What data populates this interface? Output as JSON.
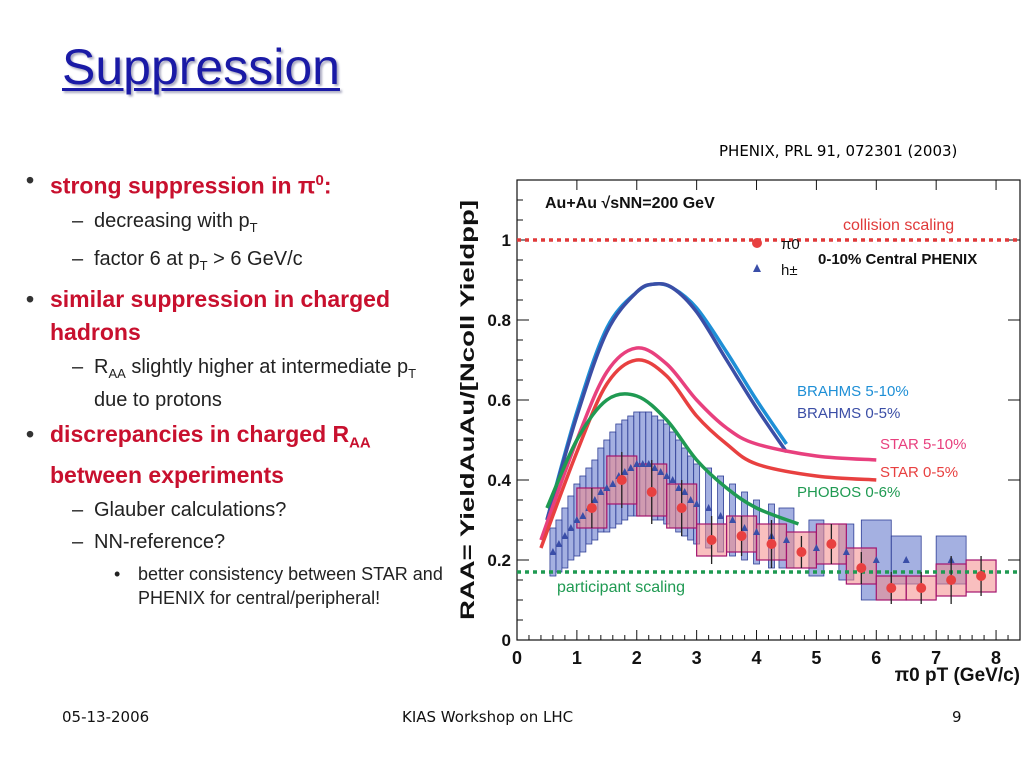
{
  "slide": {
    "title": "Suppression",
    "citation": "PHENIX, PRL 91, 072301 (2003)",
    "footer_left": "05-13-2006",
    "footer_center": "KIAS Workshop on LHC",
    "footer_right": "9"
  },
  "bullets": [
    {
      "level": 1,
      "text": "strong suppression in π",
      "sup": "0",
      "tail": ":"
    },
    {
      "level": 2,
      "text": "decreasing with p",
      "sub": "T"
    },
    {
      "level": 2,
      "text": "factor 6 at p",
      "sub": "T",
      "tail": " > 6 GeV/c"
    },
    {
      "level": 1,
      "text": "similar suppression in charged hadrons"
    },
    {
      "level": 2,
      "pre": "R",
      "presub": "AA",
      "text": " slightly higher at intermediate p",
      "sub": "T",
      "tail": " due to protons"
    },
    {
      "level": 1,
      "text": "discrepancies in charged R",
      "sub": "AA",
      "tail": " between experiments"
    },
    {
      "level": 2,
      "text": "Glauber calculations?"
    },
    {
      "level": 2,
      "text": "NN-reference?"
    },
    {
      "level": 3,
      "text": " better consistency between STAR and PHENIX for central/peripheral!"
    }
  ],
  "chart_data": {
    "type": "scatter",
    "title": "Au+Au √sNN=200 GeV",
    "subtitle": "0-10% Central PHENIX",
    "xlabel": "π0 pT (GeV/c)",
    "ylabel": "RAA= YieldAuAu/[Ncoll Yieldpp]",
    "xlim": [
      0,
      8.4
    ],
    "ylim": [
      0,
      1.15
    ],
    "xticks": [
      0,
      1,
      2,
      3,
      4,
      5,
      6,
      7,
      8
    ],
    "yticks": [
      0,
      0.2,
      0.4,
      0.6,
      0.8,
      1
    ],
    "ytick_labels": [
      "0",
      "0.2",
      "0.4",
      "0.6",
      "0.8",
      "1"
    ],
    "grid": false,
    "reference_lines": [
      {
        "label": "collision scaling",
        "y": 1.0,
        "color": "#e03a3a"
      },
      {
        "label": "participant scaling",
        "y": 0.17,
        "color": "#1f9a52"
      }
    ],
    "legend": [
      {
        "symbol": "circle",
        "label": "π0",
        "color": "#e84040"
      },
      {
        "symbol": "triangle",
        "label": "h±",
        "color": "#3a4ea8"
      }
    ],
    "series": [
      {
        "name": "π0",
        "color": "#e84040",
        "marker": "circle",
        "x": [
          1.25,
          1.75,
          2.25,
          2.75,
          3.25,
          3.75,
          4.25,
          4.75,
          5.25,
          5.75,
          6.25,
          6.75,
          7.25,
          7.75
        ],
        "y": [
          0.33,
          0.4,
          0.37,
          0.33,
          0.25,
          0.26,
          0.24,
          0.22,
          0.24,
          0.18,
          0.13,
          0.13,
          0.15,
          0.16
        ],
        "err": [
          0.05,
          0.07,
          0.08,
          0.07,
          0.06,
          0.05,
          0.06,
          0.04,
          0.05,
          0.04,
          0.04,
          0.04,
          0.06,
          0.05
        ],
        "sys_lo": [
          0.28,
          0.34,
          0.31,
          0.28,
          0.21,
          0.22,
          0.2,
          0.18,
          0.19,
          0.14,
          0.1,
          0.1,
          0.11,
          0.12
        ],
        "sys_hi": [
          0.38,
          0.46,
          0.44,
          0.39,
          0.29,
          0.31,
          0.29,
          0.27,
          0.29,
          0.23,
          0.16,
          0.16,
          0.19,
          0.2
        ]
      },
      {
        "name": "h±",
        "color": "#3a4ea8",
        "marker": "triangle",
        "x": [
          0.6,
          0.7,
          0.8,
          0.9,
          1.0,
          1.1,
          1.2,
          1.3,
          1.4,
          1.5,
          1.6,
          1.7,
          1.8,
          1.9,
          2.0,
          2.1,
          2.2,
          2.3,
          2.4,
          2.5,
          2.6,
          2.7,
          2.8,
          2.9,
          3.0,
          3.2,
          3.4,
          3.6,
          3.8,
          4.0,
          4.25,
          4.5,
          5.0,
          5.5,
          6.0,
          6.5,
          7.25
        ],
        "y": [
          0.22,
          0.24,
          0.26,
          0.28,
          0.3,
          0.31,
          0.33,
          0.35,
          0.37,
          0.38,
          0.39,
          0.41,
          0.42,
          0.43,
          0.44,
          0.44,
          0.44,
          0.43,
          0.42,
          0.41,
          0.4,
          0.38,
          0.37,
          0.35,
          0.34,
          0.33,
          0.31,
          0.3,
          0.28,
          0.27,
          0.26,
          0.25,
          0.23,
          0.22,
          0.2,
          0.2,
          0.2
        ],
        "sys_lo": [
          0.16,
          0.17,
          0.18,
          0.2,
          0.21,
          0.22,
          0.24,
          0.25,
          0.27,
          0.27,
          0.28,
          0.29,
          0.3,
          0.31,
          0.31,
          0.31,
          0.31,
          0.3,
          0.3,
          0.29,
          0.28,
          0.27,
          0.26,
          0.25,
          0.24,
          0.23,
          0.22,
          0.21,
          0.2,
          0.19,
          0.18,
          0.18,
          0.16,
          0.15,
          0.1,
          0.14,
          0.14
        ],
        "sys_hi": [
          0.28,
          0.3,
          0.33,
          0.36,
          0.39,
          0.41,
          0.43,
          0.45,
          0.48,
          0.5,
          0.52,
          0.54,
          0.55,
          0.56,
          0.57,
          0.57,
          0.57,
          0.56,
          0.55,
          0.54,
          0.52,
          0.5,
          0.48,
          0.46,
          0.44,
          0.43,
          0.41,
          0.39,
          0.37,
          0.35,
          0.34,
          0.33,
          0.3,
          0.29,
          0.3,
          0.26,
          0.26
        ]
      },
      {
        "name": "BRAHMS 5-10%",
        "color": "#1e8fd6",
        "x": [
          0.5,
          1.0,
          1.5,
          2.0,
          2.3,
          2.6,
          3.0,
          3.5,
          4.0,
          4.5
        ],
        "y": [
          0.3,
          0.57,
          0.78,
          0.87,
          0.89,
          0.88,
          0.83,
          0.72,
          0.6,
          0.49
        ]
      },
      {
        "name": "BRAHMS 0-5%",
        "color": "#3b4ea6",
        "x": [
          0.5,
          1.0,
          1.5,
          2.0,
          2.3,
          2.6,
          3.0,
          3.5,
          4.0,
          4.5
        ],
        "y": [
          0.3,
          0.56,
          0.77,
          0.87,
          0.89,
          0.88,
          0.82,
          0.7,
          0.58,
          0.47
        ]
      },
      {
        "name": "STAR 5-10%",
        "color": "#e8407e",
        "x": [
          0.4,
          1.0,
          1.5,
          2.0,
          2.5,
          3.0,
          3.5,
          4.0,
          5.0,
          6.0
        ],
        "y": [
          0.25,
          0.5,
          0.67,
          0.73,
          0.69,
          0.6,
          0.53,
          0.49,
          0.46,
          0.45
        ]
      },
      {
        "name": "STAR 0-5%",
        "color": "#e84040",
        "x": [
          0.4,
          1.0,
          1.5,
          2.0,
          2.5,
          3.0,
          3.5,
          4.0,
          5.0,
          6.0
        ],
        "y": [
          0.23,
          0.47,
          0.64,
          0.7,
          0.66,
          0.56,
          0.49,
          0.44,
          0.41,
          0.4
        ]
      },
      {
        "name": "PHOBOS 0-6%",
        "color": "#1f9a52",
        "x": [
          0.5,
          1.0,
          1.5,
          2.0,
          2.5,
          3.0,
          3.5,
          4.0,
          4.7
        ],
        "y": [
          0.33,
          0.5,
          0.6,
          0.61,
          0.55,
          0.45,
          0.38,
          0.33,
          0.29
        ]
      }
    ]
  }
}
